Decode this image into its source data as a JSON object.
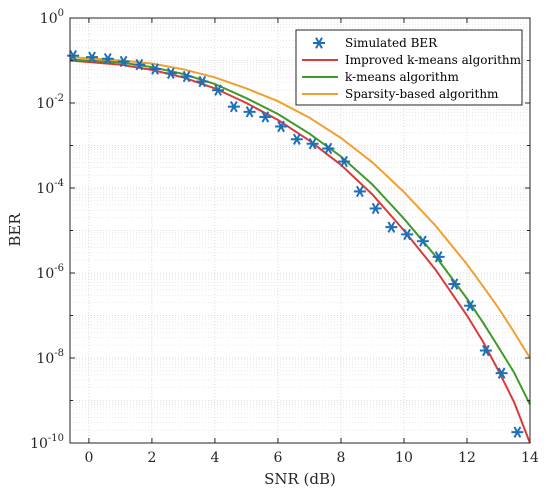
{
  "chart_data": {
    "type": "line",
    "xlabel": "SNR (dB)",
    "ylabel": "BER",
    "xlim": [
      -0.6,
      14
    ],
    "ylim_exponent": [
      -10,
      0
    ],
    "y_scale": "log",
    "grid": true,
    "minor_grid": true,
    "legend_position": "top-right",
    "x_ticks": [
      0,
      2,
      4,
      6,
      8,
      10,
      12,
      14
    ],
    "y_ticks": [
      {
        "base": "10",
        "exp": "0"
      },
      {
        "base": "10",
        "exp": "-2"
      },
      {
        "base": "10",
        "exp": "-4"
      },
      {
        "base": "10",
        "exp": "-6"
      },
      {
        "base": "10",
        "exp": "-8"
      },
      {
        "base": "10",
        "exp": "-10"
      }
    ],
    "series": [
      {
        "name": "Simulated BER",
        "style": "markers",
        "marker": "asterisk",
        "color": "#1f6fb4",
        "x": [
          -0.5,
          0.1,
          0.6,
          1.1,
          1.6,
          2.1,
          2.6,
          3.1,
          3.6,
          4.1,
          4.6,
          5.1,
          5.6,
          6.1,
          6.6,
          7.1,
          7.6,
          8.1,
          8.6,
          9.1,
          9.6,
          10.1,
          10.6,
          11.1,
          11.6,
          12.1,
          12.6,
          13.1,
          13.6
        ],
        "y": [
          0.13,
          0.12,
          0.11,
          0.095,
          0.08,
          0.063,
          0.05,
          0.042,
          0.032,
          0.02,
          0.0082,
          0.0062,
          0.0047,
          0.0028,
          0.0014,
          0.0011,
          0.00085,
          0.00042,
          8.3e-05,
          3.3e-05,
          1.2e-05,
          8.1e-06,
          5.6e-06,
          2.4e-06,
          5.5e-07,
          1.7e-07,
          1.5e-08,
          4.4e-09,
          1.8e-10
        ]
      },
      {
        "name": "Improved k-means algorithm",
        "style": "line",
        "color": "#d93b3b",
        "x": [
          -0.6,
          1,
          2,
          3,
          4,
          5,
          6,
          7,
          8,
          9,
          10,
          11,
          12,
          12.5,
          13,
          13.5,
          14
        ],
        "y": [
          0.1,
          0.08,
          0.06,
          0.04,
          0.022,
          0.01,
          0.004,
          0.0013,
          0.00035,
          7e-05,
          1e-05,
          1.2e-06,
          1e-07,
          2.5e-08,
          5e-09,
          9e-10,
          1e-10
        ]
      },
      {
        "name": "k-means algorithm",
        "style": "line",
        "color": "#3f9a2b",
        "x": [
          -0.6,
          1,
          2,
          3,
          4,
          5,
          6,
          7,
          8,
          9,
          10,
          11,
          12,
          12.5,
          13,
          13.5,
          14
        ],
        "y": [
          0.105,
          0.09,
          0.07,
          0.048,
          0.028,
          0.013,
          0.0055,
          0.0019,
          0.00055,
          0.00012,
          1.9e-05,
          2.5e-06,
          2.5e-07,
          7e-08,
          1.8e-08,
          4.5e-09,
          8e-10
        ]
      },
      {
        "name": "Sparsity-based algorithm",
        "style": "line",
        "color": "#f0a030",
        "x": [
          -0.6,
          1,
          2,
          3,
          4,
          5,
          6,
          7,
          8,
          9,
          10,
          11,
          12,
          12.5,
          13,
          13.5,
          14
        ],
        "y": [
          0.12,
          0.1,
          0.085,
          0.062,
          0.04,
          0.022,
          0.011,
          0.0045,
          0.0015,
          0.0004,
          8e-05,
          1.3e-05,
          1.6e-06,
          5e-07,
          1.5e-07,
          4e-08,
          1e-08
        ]
      }
    ]
  }
}
